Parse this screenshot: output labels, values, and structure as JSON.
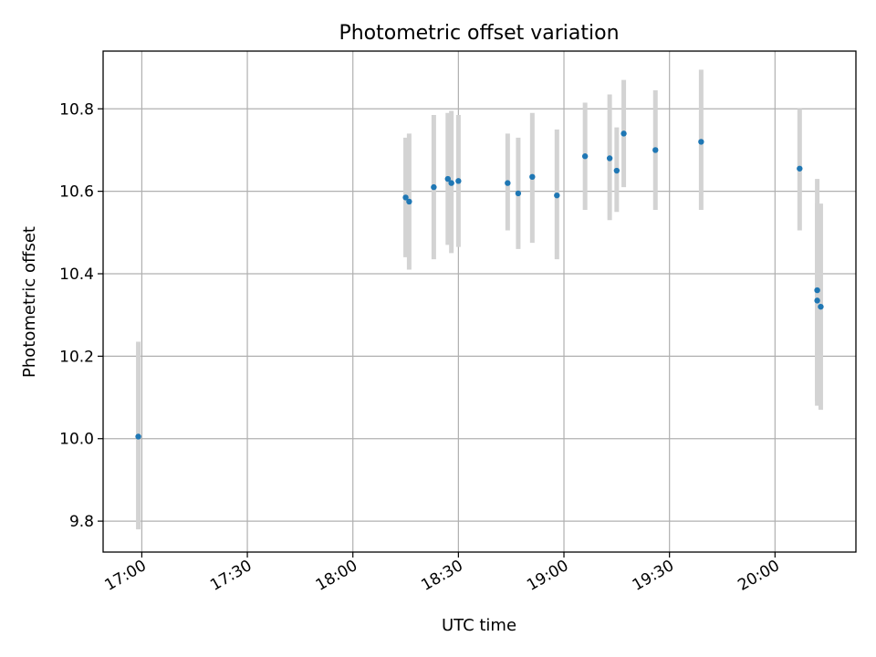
{
  "chart_data": {
    "type": "scatter",
    "title": "Photometric offset variation",
    "xlabel": "UTC time",
    "ylabel": "Photometric offset",
    "xlim": [
      "16:49",
      "20:23"
    ],
    "ylim": [
      9.725,
      10.94
    ],
    "x_ticks": [
      "17:00",
      "17:30",
      "18:00",
      "18:30",
      "19:00",
      "19:30",
      "20:00"
    ],
    "y_ticks": [
      "9.8",
      "10.0",
      "10.2",
      "10.4",
      "10.6",
      "10.8"
    ],
    "grid": true,
    "marker_color": "#1f77b4",
    "errorbar_color": "#d3d3d3",
    "points": [
      {
        "time": "16:59",
        "value": 10.005,
        "low": 9.78,
        "high": 10.235
      },
      {
        "time": "18:15",
        "value": 10.585,
        "low": 10.44,
        "high": 10.73
      },
      {
        "time": "18:16",
        "value": 10.575,
        "low": 10.41,
        "high": 10.74
      },
      {
        "time": "18:23",
        "value": 10.61,
        "low": 10.435,
        "high": 10.785
      },
      {
        "time": "18:27",
        "value": 10.63,
        "low": 10.47,
        "high": 10.79
      },
      {
        "time": "18:28",
        "value": 10.62,
        "low": 10.45,
        "high": 10.795
      },
      {
        "time": "18:30",
        "value": 10.625,
        "low": 10.465,
        "high": 10.785
      },
      {
        "time": "18:44",
        "value": 10.62,
        "low": 10.505,
        "high": 10.74
      },
      {
        "time": "18:47",
        "value": 10.595,
        "low": 10.46,
        "high": 10.73
      },
      {
        "time": "18:51",
        "value": 10.635,
        "low": 10.475,
        "high": 10.79
      },
      {
        "time": "18:58",
        "value": 10.59,
        "low": 10.435,
        "high": 10.75
      },
      {
        "time": "19:06",
        "value": 10.685,
        "low": 10.555,
        "high": 10.815
      },
      {
        "time": "19:13",
        "value": 10.68,
        "low": 10.53,
        "high": 10.835
      },
      {
        "time": "19:15",
        "value": 10.65,
        "low": 10.55,
        "high": 10.755
      },
      {
        "time": "19:17",
        "value": 10.74,
        "low": 10.61,
        "high": 10.87
      },
      {
        "time": "19:26",
        "value": 10.7,
        "low": 10.555,
        "high": 10.845
      },
      {
        "time": "19:39",
        "value": 10.72,
        "low": 10.555,
        "high": 10.895
      },
      {
        "time": "20:07",
        "value": 10.655,
        "low": 10.505,
        "high": 10.8
      },
      {
        "time": "20:12",
        "value": 10.36,
        "low": 10.09,
        "high": 10.63
      },
      {
        "time": "20:12",
        "value": 10.335,
        "low": 10.08,
        "high": 10.57
      },
      {
        "time": "20:13",
        "value": 10.32,
        "low": 10.07,
        "high": 10.57
      }
    ]
  }
}
